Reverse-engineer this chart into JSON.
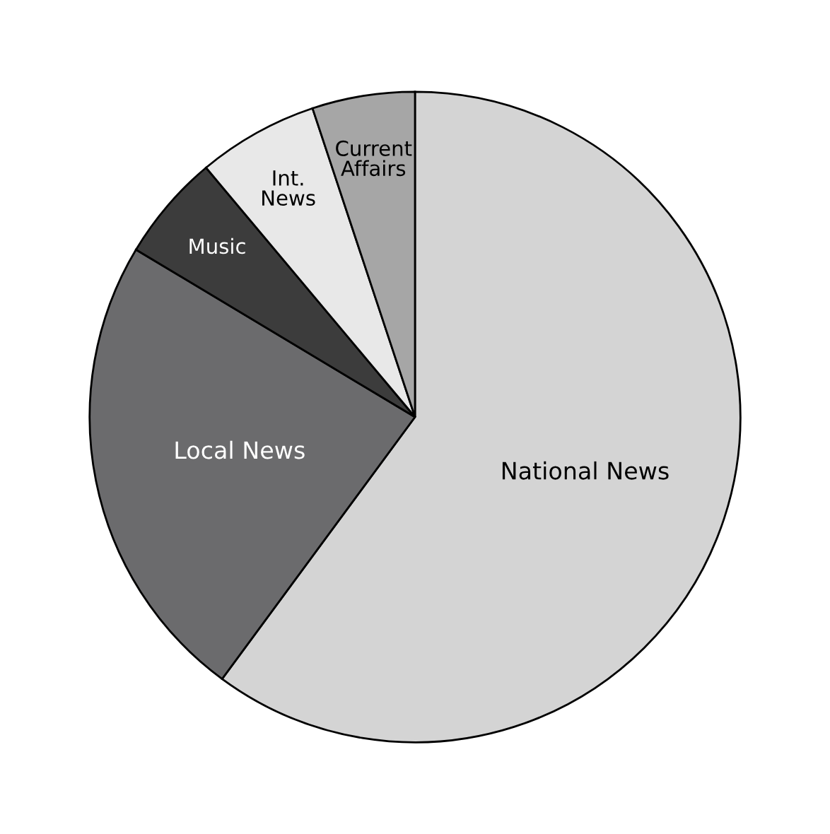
{
  "chart_data": {
    "type": "pie",
    "categories": [
      "National News",
      "Local News",
      "Music",
      "Int.\nNews",
      "Current\nAffairs"
    ],
    "values": [
      60.1,
      23.5,
      5.3,
      6.0,
      5.1
    ],
    "colors": [
      "#d4d4d4",
      "#6b6b6d",
      "#3c3c3c",
      "#e8e8e8",
      "#a6a6a6"
    ]
  }
}
